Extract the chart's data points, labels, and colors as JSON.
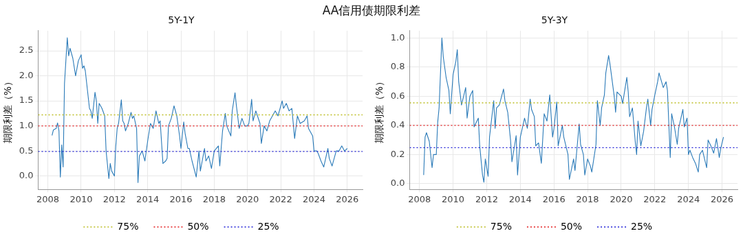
{
  "chart_data": [
    {
      "type": "line",
      "title": "5Y-1Y",
      "ylabel": "期限利差（%）",
      "annotations": [
        "AA信用债期限利差"
      ],
      "grid": true,
      "legend": "bottom",
      "line_style": "solid",
      "marker": "none",
      "xlim": [
        "2007-06",
        "2026-12"
      ],
      "xticks": [
        "2008",
        "2010",
        "2012",
        "2014",
        "2016",
        "2018",
        "2020",
        "2022",
        "2024",
        "2026"
      ],
      "ylim": [
        -0.27,
        2.9
      ],
      "yticks": [
        {
          "value": 0,
          "label": "0.0"
        },
        {
          "value": 0.5,
          "label": "0.5"
        },
        {
          "value": 1,
          "label": "1.0"
        },
        {
          "value": 1.5,
          "label": "1.5"
        },
        {
          "value": 2,
          "label": "2.0"
        },
        {
          "value": 2.5,
          "label": "2.5"
        }
      ],
      "series": [
        {
          "name": "75%",
          "color": "#bcbd22",
          "line_style": "dotted",
          "x": [
            "2007-06",
            "2026-12"
          ],
          "values": [
            1.22,
            1.22
          ]
        },
        {
          "name": "50%",
          "color": "#e31a1c",
          "line_style": "dotted",
          "x": [
            "2007-06",
            "2026-12"
          ],
          "values": [
            1.0,
            1.0
          ]
        },
        {
          "name": "25%",
          "color": "#1f1fd6",
          "line_style": "dotted",
          "x": [
            "2007-06",
            "2026-12"
          ],
          "values": [
            0.49,
            0.49
          ]
        },
        {
          "color": "#2a7ab8",
          "x": [
            "2008-04",
            "2008-05",
            "2008-07",
            "2008-08",
            "2008-09",
            "2008-10",
            "2008-11",
            "2008-12",
            "2009-01",
            "2009-03",
            "2009-04",
            "2009-05",
            "2009-07",
            "2009-09",
            "2009-11",
            "2010-01",
            "2010-02",
            "2010-03",
            "2010-04",
            "2010-06",
            "2010-07",
            "2010-08",
            "2010-09",
            "2010-11",
            "2010-12",
            "2011-01",
            "2011-02",
            "2011-04",
            "2011-06",
            "2011-07",
            "2011-09",
            "2011-10",
            "2011-11",
            "2012-01",
            "2012-02",
            "2012-03",
            "2012-04",
            "2012-06",
            "2012-07",
            "2012-08",
            "2012-09",
            "2012-11",
            "2013-01",
            "2013-02",
            "2013-03",
            "2013-05",
            "2013-06",
            "2013-07",
            "2013-09",
            "2013-11",
            "2014-01",
            "2014-03",
            "2014-05",
            "2014-07",
            "2014-09",
            "2014-10",
            "2014-12",
            "2015-02",
            "2015-03",
            "2015-04",
            "2015-06",
            "2015-08",
            "2015-10",
            "2015-12",
            "2016-01",
            "2016-03",
            "2016-04",
            "2016-06",
            "2016-07",
            "2016-09",
            "2016-12",
            "2017-02",
            "2017-03",
            "2017-06",
            "2017-07",
            "2017-09",
            "2017-11",
            "2018-01",
            "2018-04",
            "2018-05",
            "2018-07",
            "2018-09",
            "2018-10",
            "2019-01",
            "2019-02",
            "2019-04",
            "2019-05",
            "2019-07",
            "2019-09",
            "2019-11",
            "2020-01",
            "2020-02",
            "2020-04",
            "2020-05",
            "2020-07",
            "2020-10",
            "2020-11",
            "2021-01",
            "2021-03",
            "2021-05",
            "2021-07",
            "2021-09",
            "2021-11",
            "2022-02",
            "2022-03",
            "2022-05",
            "2022-07",
            "2022-09",
            "2022-11",
            "2023-01",
            "2023-03",
            "2023-06",
            "2023-08",
            "2023-09",
            "2023-12",
            "2024-01",
            "2024-03",
            "2024-04",
            "2024-06",
            "2024-08",
            "2024-11",
            "2024-12",
            "2025-02",
            "2025-05",
            "2025-07",
            "2025-09",
            "2025-11",
            "2026-01"
          ],
          "values": [
            0.81,
            0.92,
            0.95,
            1.06,
            0.9,
            -0.02,
            0.62,
            0.18,
            1.85,
            2.76,
            2.4,
            2.55,
            2.35,
            2.0,
            2.3,
            2.42,
            2.15,
            2.2,
            2.1,
            1.6,
            1.35,
            1.3,
            1.15,
            1.67,
            1.5,
            1.05,
            1.45,
            1.35,
            1.2,
            0.5,
            -0.05,
            0.25,
            0.1,
            0.0,
            0.6,
            0.95,
            1.05,
            1.52,
            1.1,
            1.05,
            0.9,
            1.05,
            1.27,
            1.15,
            1.2,
            0.95,
            -0.13,
            0.4,
            0.5,
            0.3,
            0.7,
            1.05,
            0.95,
            1.3,
            1.05,
            1.1,
            0.25,
            0.3,
            0.35,
            1.0,
            1.15,
            1.4,
            1.2,
            0.8,
            0.55,
            1.08,
            0.85,
            0.55,
            0.55,
            0.3,
            -0.02,
            0.5,
            0.1,
            0.55,
            0.3,
            0.4,
            0.15,
            0.5,
            0.6,
            0.2,
            0.9,
            1.25,
            1.0,
            0.8,
            1.3,
            1.66,
            1.4,
            0.95,
            1.15,
            1.0,
            1.0,
            1.05,
            1.53,
            1.1,
            1.3,
            1.05,
            0.65,
            1.0,
            0.9,
            1.1,
            1.2,
            1.3,
            1.2,
            1.5,
            1.35,
            1.45,
            1.3,
            1.35,
            0.75,
            1.2,
            1.05,
            1.1,
            1.2,
            0.95,
            0.8,
            0.5,
            0.5,
            0.45,
            0.3,
            0.18,
            0.55,
            0.35,
            0.2,
            0.5,
            0.5,
            0.6,
            0.5,
            0.55
          ]
        }
      ]
    },
    {
      "type": "line",
      "title": "5Y-3Y",
      "ylabel": "期限利差（%）",
      "grid": true,
      "legend": "bottom",
      "line_style": "solid",
      "marker": "none",
      "xlim": [
        "2007-06",
        "2026-12"
      ],
      "xticks": [
        "2008",
        "2010",
        "2012",
        "2014",
        "2016",
        "2018",
        "2020",
        "2022",
        "2024",
        "2026"
      ],
      "ylim": [
        -0.04,
        1.05
      ],
      "yticks": [
        {
          "value": 0,
          "label": "0.0"
        },
        {
          "value": 0.2,
          "label": "0.2"
        },
        {
          "value": 0.4,
          "label": "0.4"
        },
        {
          "value": 0.6,
          "label": "0.6"
        },
        {
          "value": 0.8,
          "label": "0.8"
        },
        {
          "value": 1,
          "label": "1.0"
        }
      ],
      "series": [
        {
          "name": "75%",
          "color": "#bcbd22",
          "line_style": "dotted",
          "x": [
            "2007-06",
            "2026-12"
          ],
          "values": [
            0.555,
            0.555
          ]
        },
        {
          "name": "50%",
          "color": "#e31a1c",
          "line_style": "dotted",
          "x": [
            "2007-06",
            "2026-12"
          ],
          "values": [
            0.4,
            0.4
          ]
        },
        {
          "name": "25%",
          "color": "#1f1fd6",
          "line_style": "dotted",
          "x": [
            "2007-06",
            "2026-12"
          ],
          "values": [
            0.247,
            0.247
          ]
        },
        {
          "color": "#2a7ab8",
          "x": [
            "2008-04",
            "2008-05",
            "2008-06",
            "2008-08",
            "2008-10",
            "2008-11",
            "2009-01",
            "2009-02",
            "2009-03",
            "2009-05",
            "2009-06",
            "2009-08",
            "2009-10",
            "2009-11",
            "2010-01",
            "2010-03",
            "2010-04",
            "2010-05",
            "2010-07",
            "2010-10",
            "2010-11",
            "2011-01",
            "2011-03",
            "2011-04",
            "2011-07",
            "2011-08",
            "2011-10",
            "2011-11",
            "2011-12",
            "2012-02",
            "2012-03",
            "2012-06",
            "2012-07",
            "2012-08",
            "2012-10",
            "2013-01",
            "2013-02",
            "2013-04",
            "2013-06",
            "2013-07",
            "2013-10",
            "2013-11",
            "2014-01",
            "2014-04",
            "2014-06",
            "2014-08",
            "2014-09",
            "2014-11",
            "2014-12",
            "2015-02",
            "2015-04",
            "2015-06",
            "2015-08",
            "2015-10",
            "2015-12",
            "2016-01",
            "2016-03",
            "2016-04",
            "2016-07",
            "2016-08",
            "2016-11",
            "2016-12",
            "2017-03",
            "2017-04",
            "2017-07",
            "2017-08",
            "2017-10",
            "2017-11",
            "2018-01",
            "2018-03",
            "2018-04",
            "2018-07",
            "2018-08",
            "2018-10",
            "2018-11",
            "2019-01",
            "2019-02",
            "2019-04",
            "2019-05",
            "2019-08",
            "2019-09",
            "2019-10",
            "2020-01",
            "2020-02",
            "2020-05",
            "2020-06",
            "2020-07",
            "2020-09",
            "2020-11",
            "2020-12",
            "2021-01",
            "2021-03",
            "2021-05",
            "2021-07",
            "2021-08",
            "2021-10",
            "2021-11",
            "2022-01",
            "2022-03",
            "2022-04",
            "2022-07",
            "2022-09",
            "2022-10",
            "2022-12",
            "2023-01",
            "2023-03",
            "2023-05",
            "2023-06",
            "2023-09",
            "2023-10",
            "2023-12",
            "2024-01",
            "2024-02",
            "2024-04",
            "2024-06",
            "2024-08",
            "2024-09",
            "2024-11",
            "2025-02",
            "2025-03",
            "2025-05",
            "2025-07",
            "2025-09",
            "2025-11",
            "2025-12",
            "2026-02"
          ],
          "values": [
            0.06,
            0.32,
            0.35,
            0.29,
            0.11,
            0.2,
            0.2,
            0.42,
            0.52,
            1.0,
            0.87,
            0.73,
            0.64,
            0.48,
            0.75,
            0.84,
            0.92,
            0.7,
            0.54,
            0.66,
            0.45,
            0.6,
            0.64,
            0.39,
            0.45,
            0.26,
            0.06,
            0.01,
            0.17,
            0.05,
            0.32,
            0.57,
            0.38,
            0.52,
            0.54,
            0.65,
            0.57,
            0.49,
            0.3,
            0.15,
            0.33,
            0.06,
            0.32,
            0.45,
            0.38,
            0.58,
            0.51,
            0.46,
            0.26,
            0.28,
            0.14,
            0.48,
            0.43,
            0.61,
            0.32,
            0.38,
            0.56,
            0.26,
            0.4,
            0.32,
            0.2,
            0.03,
            0.17,
            0.09,
            0.41,
            0.27,
            0.2,
            0.06,
            0.17,
            0.12,
            0.08,
            0.27,
            0.57,
            0.4,
            0.52,
            0.61,
            0.76,
            0.88,
            0.82,
            0.6,
            0.49,
            0.63,
            0.6,
            0.55,
            0.73,
            0.63,
            0.46,
            0.52,
            0.29,
            0.2,
            0.43,
            0.26,
            0.36,
            0.52,
            0.58,
            0.4,
            0.51,
            0.61,
            0.7,
            0.76,
            0.66,
            0.7,
            0.64,
            0.18,
            0.48,
            0.39,
            0.27,
            0.38,
            0.51,
            0.39,
            0.45,
            0.2,
            0.23,
            0.18,
            0.14,
            0.08,
            0.2,
            0.23,
            0.11,
            0.3,
            0.26,
            0.21,
            0.31,
            0.18,
            0.24,
            0.32
          ]
        }
      ]
    }
  ]
}
